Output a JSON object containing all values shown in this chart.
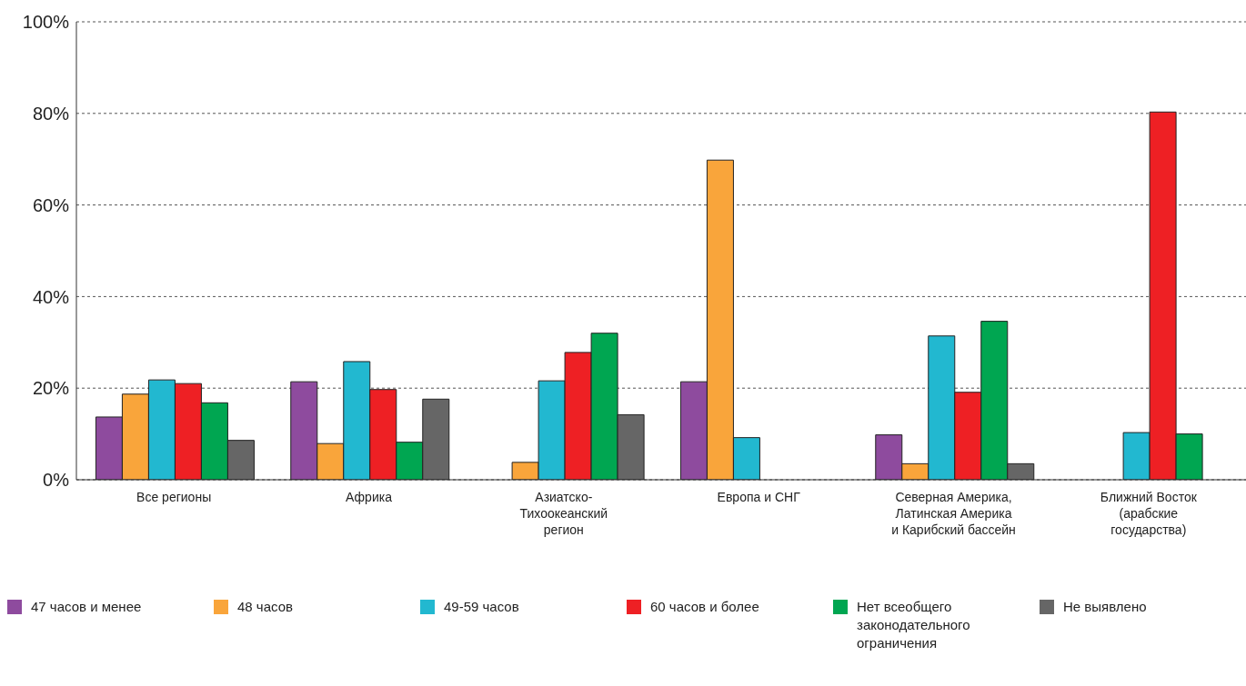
{
  "chart_data": {
    "type": "bar",
    "categories": [
      "Все регионы",
      "Африка",
      "Азиатско-\nТихоокеанский\nрегион",
      "Европа и СНГ",
      "Северная Америка,\nЛатинская Америка\nи Карибский бассейн",
      "Ближний Восток\n(арабские\nгосударства)"
    ],
    "series": [
      {
        "name": "47 часов и менее",
        "color": "#8e4b9e",
        "values": [
          13.7,
          21.4,
          null,
          21.4,
          9.8,
          null
        ]
      },
      {
        "name": "48 часов",
        "color": "#f9a53b",
        "values": [
          18.7,
          7.9,
          3.8,
          69.8,
          3.5,
          null
        ]
      },
      {
        "name": "49-59 часов",
        "color": "#22b8d0",
        "values": [
          21.8,
          25.8,
          21.6,
          9.2,
          31.4,
          10.3
        ]
      },
      {
        "name": "60 часов и более",
        "color": "#ee2024",
        "values": [
          21,
          19.7,
          27.8,
          null,
          19.1,
          80.3
        ]
      },
      {
        "name": "Нет всеобщего\nзаконодательного\nограничения",
        "color": "#00a651",
        "values": [
          16.8,
          8.2,
          32,
          null,
          34.6,
          10
        ]
      },
      {
        "name": "Не выявлено",
        "color": "#666666",
        "values": [
          8.6,
          17.6,
          14.2,
          null,
          3.5,
          null
        ]
      }
    ],
    "ylim": [
      0,
      100
    ],
    "yticks": [
      {
        "value": 0,
        "label": "0%"
      },
      {
        "value": 20,
        "label": "20%"
      },
      {
        "value": 40,
        "label": "40%"
      },
      {
        "value": 60,
        "label": "60%"
      },
      {
        "value": 80,
        "label": "80%"
      },
      {
        "value": 100,
        "label": "100%"
      }
    ],
    "grid": "y",
    "legend": "bottom"
  }
}
